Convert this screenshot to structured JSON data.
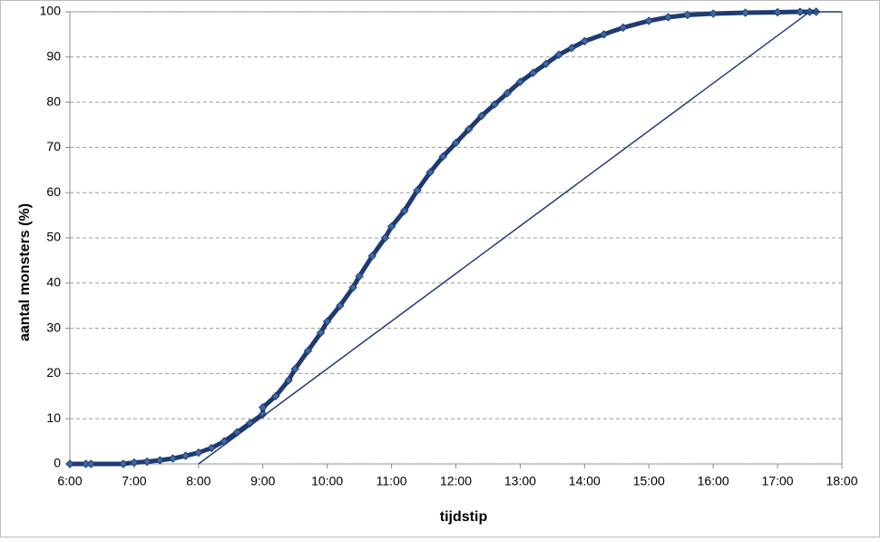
{
  "chart_data": {
    "type": "line",
    "xlabel": "tijdstip",
    "ylabel": "aantal monsters (%)",
    "xlim": [
      6,
      18
    ],
    "xticks": [
      {
        "value": 6,
        "label": "6:00"
      },
      {
        "value": 7,
        "label": "7:00"
      },
      {
        "value": 8,
        "label": "8:00"
      },
      {
        "value": 9,
        "label": "9:00"
      },
      {
        "value": 10,
        "label": "10:00"
      },
      {
        "value": 11,
        "label": "11:00"
      },
      {
        "value": 12,
        "label": "12:00"
      },
      {
        "value": 13,
        "label": "13:00"
      },
      {
        "value": 14,
        "label": "14:00"
      },
      {
        "value": 15,
        "label": "15:00"
      },
      {
        "value": 16,
        "label": "16:00"
      },
      {
        "value": 17,
        "label": "17:00"
      },
      {
        "value": 18,
        "label": "18:00"
      }
    ],
    "ylim": [
      0,
      100
    ],
    "yticks": [
      0,
      10,
      20,
      30,
      40,
      50,
      60,
      70,
      80,
      90,
      100
    ],
    "grid": true,
    "series": [
      {
        "color": "#1f3a73",
        "marker": "diamond",
        "width": 5,
        "x": [
          6.0,
          6.25,
          6.33,
          6.83,
          7.0,
          7.2,
          7.4,
          7.6,
          7.8,
          8.0,
          8.2,
          8.4,
          8.6,
          8.8,
          9.0,
          9.0,
          9.2,
          9.4,
          9.5,
          9.7,
          9.9,
          10.0,
          10.2,
          10.4,
          10.5,
          10.7,
          10.9,
          11.0,
          11.2,
          11.4,
          11.6,
          11.8,
          12.0,
          12.2,
          12.4,
          12.6,
          12.8,
          13.0,
          13.2,
          13.4,
          13.6,
          13.8,
          14.0,
          14.3,
          14.6,
          15.0,
          15.3,
          15.6,
          16.0,
          16.5,
          17.0,
          17.35,
          17.5,
          17.6
        ],
        "values": [
          0,
          0,
          0,
          0,
          0.3,
          0.5,
          0.8,
          1.2,
          1.8,
          2.5,
          3.5,
          5,
          7,
          9,
          11,
          12.5,
          15,
          18.5,
          21,
          25,
          29,
          31.5,
          35,
          39,
          41.5,
          46,
          50,
          52.5,
          56,
          60.5,
          64.5,
          68,
          71,
          74,
          77,
          79.5,
          82,
          84.5,
          86.5,
          88.5,
          90.5,
          92,
          93.5,
          95,
          96.5,
          98,
          98.8,
          99.3,
          99.6,
          99.8,
          99.9,
          100,
          100,
          100
        ]
      },
      {
        "color": "#1f3a73",
        "width": 1.5,
        "x": [
          8,
          17.5,
          18
        ],
        "values": [
          0,
          100,
          100
        ]
      }
    ]
  }
}
